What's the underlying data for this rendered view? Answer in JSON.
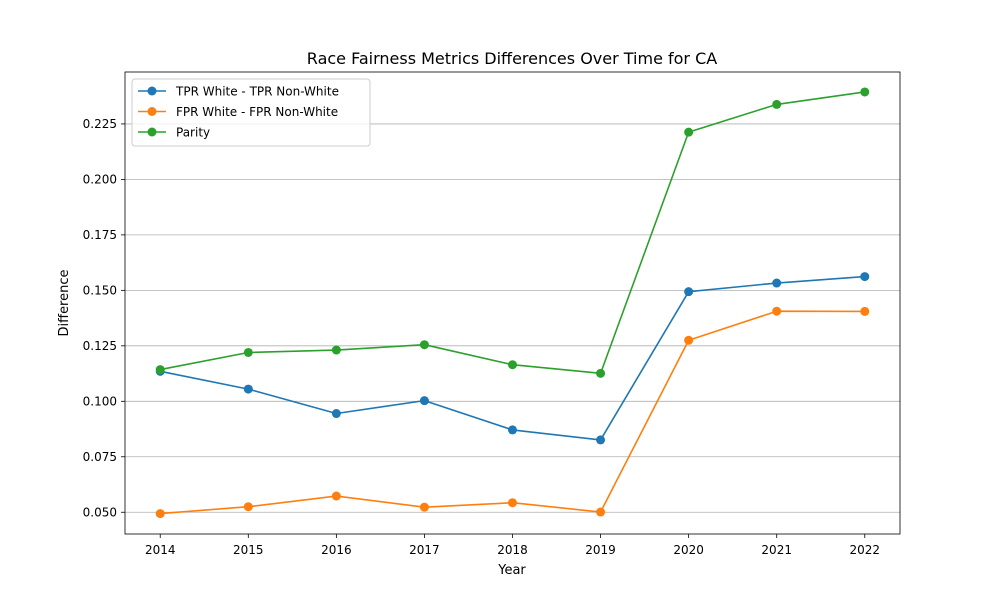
{
  "chart_data": {
    "type": "line",
    "title": "Race Fairness Metrics Differences Over Time for CA",
    "xlabel": "Year",
    "ylabel": "Difference",
    "x": [
      2014,
      2015,
      2016,
      2017,
      2018,
      2019,
      2020,
      2021,
      2022
    ],
    "x_tick_labels": [
      "2014",
      "2015",
      "2016",
      "2017",
      "2018",
      "2019",
      "2020",
      "2021",
      "2022"
    ],
    "xlim": [
      2013.6,
      2022.4
    ],
    "ylim": [
      0.0402,
      0.2484
    ],
    "y_ticks": [
      0.05,
      0.075,
      0.1,
      0.125,
      0.15,
      0.175,
      0.2,
      0.225
    ],
    "y_tick_labels": [
      "0.050",
      "0.075",
      "0.100",
      "0.125",
      "0.150",
      "0.175",
      "0.200",
      "0.225"
    ],
    "grid": "horizontal",
    "legend_position": "upper-left",
    "series": [
      {
        "name": "TPR White - TPR Non-White",
        "color": "#1f77b4",
        "values": [
          0.1135,
          0.1055,
          0.0945,
          0.1003,
          0.0871,
          0.0826,
          0.1494,
          0.1533,
          0.1562
        ]
      },
      {
        "name": "FPR White - FPR Non-White",
        "color": "#ff7f0e",
        "values": [
          0.0494,
          0.0525,
          0.0573,
          0.0523,
          0.0543,
          0.0501,
          0.1275,
          0.1406,
          0.1405
        ]
      },
      {
        "name": "Parity",
        "color": "#2ca02c",
        "values": [
          0.1143,
          0.122,
          0.1231,
          0.1255,
          0.1165,
          0.1126,
          0.2213,
          0.2338,
          0.2394
        ]
      }
    ]
  }
}
